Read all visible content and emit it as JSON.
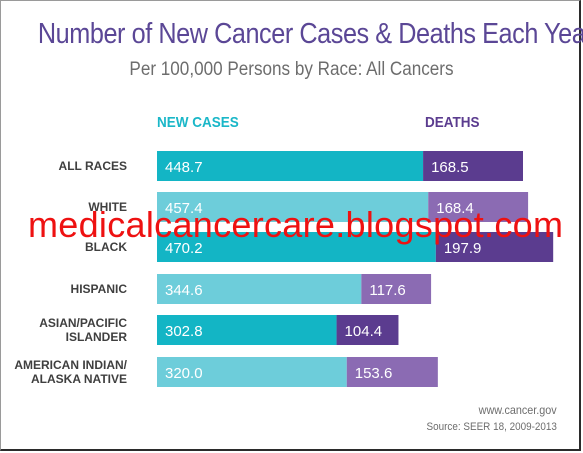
{
  "chart_data": {
    "type": "bar",
    "stacked": true,
    "orientation": "horizontal",
    "title": "Number of New Cancer Cases & Deaths Each Year",
    "subtitle": "Per 100,000 Persons by Race: All Cancers",
    "categories": [
      "ALL RACES",
      "WHITE",
      "BLACK",
      "HISPANIC",
      "ASIAN/PACIFIC ISLANDER",
      "AMERICAN INDIAN/ ALASKA NATIVE"
    ],
    "category_lines": [
      [
        "ALL RACES"
      ],
      [
        "WHITE"
      ],
      [
        "BLACK"
      ],
      [
        "HISPANIC"
      ],
      [
        "ASIAN/PACIFIC",
        "ISLANDER"
      ],
      [
        "AMERICAN INDIAN/",
        "ALASKA NATIVE"
      ]
    ],
    "series": [
      {
        "name": "NEW CASES",
        "values": [
          448.7,
          457.4,
          470.2,
          344.6,
          302.8,
          320.0
        ],
        "labels": [
          "448.7",
          "457.4",
          "470.2",
          "344.6",
          "302.8",
          "320.0"
        ]
      },
      {
        "name": "DEATHS",
        "values": [
          168.5,
          168.4,
          197.9,
          117.6,
          104.4,
          153.6
        ],
        "labels": [
          "168.5",
          "168.4",
          "197.9",
          "117.6",
          "104.4",
          "153.6"
        ]
      }
    ],
    "legend": "top",
    "grid": false
  },
  "colors": {
    "new_dark": "#13b5c5",
    "new_light": "#6dcdda",
    "deaths_dark": "#5b3c8f",
    "deaths_light": "#8b6bb3",
    "title": "#5b4796"
  },
  "watermark": "medicalcancercare.blogspot.com",
  "source": {
    "site": "www.cancer.gov",
    "citation": "Source: SEER 18, 2009-2013"
  }
}
